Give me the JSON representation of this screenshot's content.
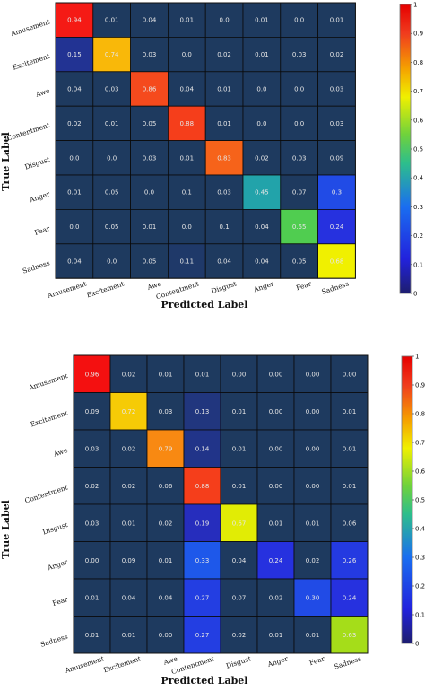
{
  "chart_data": [
    {
      "type": "heatmap",
      "xlabel": "Predicted Label",
      "ylabel": "True Label",
      "x_categories": [
        "Amusement",
        "Excitement",
        "Awe",
        "Contentment",
        "Disgust",
        "Anger",
        "Fear",
        "Sadness"
      ],
      "y_categories": [
        "Amusement",
        "Excitement",
        "Awe",
        "Contentment",
        "Disgust",
        "Anger",
        "Fear",
        "Sadness"
      ],
      "value_labels": [
        [
          "0.94",
          "0.01",
          "0.04",
          "0.01",
          "0.0",
          "0.01",
          "0.0",
          "0.01"
        ],
        [
          "0.15",
          "0.74",
          "0.03",
          "0.0",
          "0.02",
          "0.01",
          "0.03",
          "0.02"
        ],
        [
          "0.04",
          "0.03",
          "0.86",
          "0.04",
          "0.01",
          "0.0",
          "0.0",
          "0.03"
        ],
        [
          "0.02",
          "0.01",
          "0.05",
          "0.88",
          "0.01",
          "0.0",
          "0.0",
          "0.03"
        ],
        [
          "0.0",
          "0.0",
          "0.03",
          "0.01",
          "0.83",
          "0.02",
          "0.03",
          "0.09"
        ],
        [
          "0.01",
          "0.05",
          "0.0",
          "0.1",
          "0.03",
          "0.45",
          "0.07",
          "0.3"
        ],
        [
          "0.0",
          "0.05",
          "0.01",
          "0.0",
          "0.1",
          "0.04",
          "0.55",
          "0.24"
        ],
        [
          "0.04",
          "0.0",
          "0.05",
          "0.11",
          "0.04",
          "0.04",
          "0.05",
          "0.68"
        ]
      ],
      "colorbar": {
        "min": 0,
        "max": 1,
        "ticks": [
          "0",
          "0.1",
          "0.2",
          "0.3",
          "0.4",
          "0.5",
          "0.6",
          "0.7",
          "0.8",
          "0.9",
          "1"
        ]
      }
    },
    {
      "type": "heatmap",
      "xlabel": "Predicted Label",
      "ylabel": "True Label",
      "x_categories": [
        "Amusement",
        "Excitement",
        "Awe",
        "Contentment",
        "Disgust",
        "Anger",
        "Fear",
        "Sadness"
      ],
      "y_categories": [
        "Amusement",
        "Excitement",
        "Awe",
        "Contentment",
        "Disgust",
        "Anger",
        "Fear",
        "Sadness"
      ],
      "value_labels": [
        [
          "0.96",
          "0.02",
          "0.01",
          "0.01",
          "0.00",
          "0.00",
          "0.00",
          "0.00"
        ],
        [
          "0.09",
          "0.72",
          "0.03",
          "0.13",
          "0.01",
          "0.00",
          "0.00",
          "0.01"
        ],
        [
          "0.03",
          "0.02",
          "0.79",
          "0.14",
          "0.01",
          "0.00",
          "0.00",
          "0.01"
        ],
        [
          "0.02",
          "0.02",
          "0.06",
          "0.88",
          "0.01",
          "0.00",
          "0.00",
          "0.01"
        ],
        [
          "0.03",
          "0.01",
          "0.02",
          "0.19",
          "0.67",
          "0.01",
          "0.01",
          "0.06"
        ],
        [
          "0.00",
          "0.09",
          "0.01",
          "0.33",
          "0.04",
          "0.24",
          "0.02",
          "0.26"
        ],
        [
          "0.01",
          "0.04",
          "0.04",
          "0.27",
          "0.07",
          "0.02",
          "0.30",
          "0.24"
        ],
        [
          "0.01",
          "0.01",
          "0.00",
          "0.27",
          "0.02",
          "0.01",
          "0.01",
          "0.63"
        ]
      ],
      "colorbar": {
        "min": 0,
        "max": 1,
        "ticks": [
          "0",
          "0.1",
          "0.2",
          "0.3",
          "0.4",
          "0.5",
          "0.6",
          "0.7",
          "0.8",
          "0.9",
          "1"
        ]
      }
    }
  ]
}
